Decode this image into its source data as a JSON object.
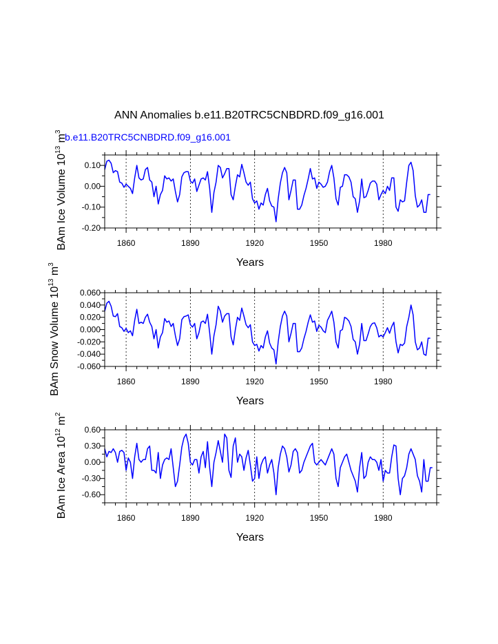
{
  "title": "ANN Anomalies b.e11.B20TRC5CNBDRD.f09_g16.001",
  "subtitle": "b.e11.B20TRC5CNBDRD.f09_g16.001",
  "colors": {
    "series": "#0000ff",
    "axis": "#000000"
  },
  "chart_data": [
    {
      "type": "line",
      "ylabel": {
        "main": "BAm Ice Volume 10",
        "exp": "13",
        "unit": " m",
        "unit_exp": "3"
      },
      "xlabel": "Years",
      "xlim": [
        1850,
        2005
      ],
      "ylim": [
        -0.2,
        0.15
      ],
      "yticks": [
        -0.2,
        -0.1,
        0.0,
        0.1
      ],
      "ytick_labels": [
        "-0.20",
        "-0.10",
        "0.00",
        "0.10"
      ],
      "xticks": [
        1860,
        1890,
        1920,
        1950,
        1980
      ],
      "xtick_labels": [
        "1860",
        "1890",
        "1920",
        "1950",
        "1980"
      ],
      "x_start": 1850,
      "values": [
        0.08,
        0.12,
        0.125,
        0.11,
        0.065,
        0.075,
        0.07,
        0.02,
        0.015,
        -0.005,
        0.01,
        0.0,
        -0.01,
        -0.035,
        0.04,
        0.1,
        0.04,
        0.03,
        0.035,
        0.08,
        0.09,
        0.03,
        0.02,
        -0.05,
        0.0,
        -0.085,
        -0.04,
        -0.02,
        0.05,
        0.035,
        0.04,
        0.025,
        0.035,
        -0.025,
        -0.075,
        -0.04,
        0.045,
        0.065,
        0.07,
        0.07,
        0.025,
        0.015,
        0.035,
        -0.025,
        0.005,
        0.035,
        0.04,
        0.03,
        0.07,
        -0.01,
        -0.125,
        -0.03,
        0.02,
        0.1,
        0.09,
        0.04,
        0.06,
        0.085,
        0.085,
        -0.04,
        -0.065,
        0.0,
        0.055,
        0.045,
        0.105,
        0.065,
        0.02,
        0.005,
        0.02,
        -0.06,
        -0.08,
        -0.07,
        -0.11,
        -0.08,
        -0.09,
        -0.04,
        -0.01,
        -0.07,
        -0.095,
        -0.1,
        -0.17,
        -0.06,
        0.015,
        0.065,
        0.09,
        0.065,
        -0.065,
        -0.02,
        0.03,
        0.03,
        -0.11,
        -0.11,
        -0.09,
        -0.045,
        -0.01,
        0.035,
        0.085,
        0.035,
        0.04,
        -0.01,
        0.02,
        0.01,
        -0.005,
        0.0,
        0.02,
        0.07,
        0.1,
        0.04,
        -0.06,
        -0.09,
        -0.005,
        0.0,
        0.055,
        0.055,
        0.045,
        0.02,
        -0.05,
        -0.06,
        -0.125,
        -0.07,
        0.035,
        -0.055,
        -0.05,
        -0.02,
        0.015,
        0.025,
        0.025,
        0.01,
        -0.065,
        -0.04,
        -0.02,
        -0.035,
        0.0,
        -0.02,
        0.04,
        0.04,
        -0.1,
        -0.12,
        -0.065,
        -0.075,
        -0.07,
        0.02,
        0.1,
        0.115,
        0.075,
        -0.045,
        -0.1,
        -0.09,
        -0.065,
        -0.125,
        -0.125,
        -0.04,
        -0.04
      ]
    },
    {
      "type": "line",
      "ylabel": {
        "main": "BAm Snow Volume 10",
        "exp": "13",
        "unit": " m",
        "unit_exp": "3"
      },
      "xlabel": "Years",
      "xlim": [
        1850,
        2005
      ],
      "ylim": [
        -0.06,
        0.06
      ],
      "yticks": [
        -0.06,
        -0.04,
        -0.02,
        0.0,
        0.02,
        0.04,
        0.06
      ],
      "ytick_labels": [
        "-0.060",
        "-0.040",
        "-0.020",
        "0.000",
        "0.020",
        "0.040",
        "0.060"
      ],
      "xticks": [
        1860,
        1890,
        1920,
        1950,
        1980
      ],
      "xtick_labels": [
        "1860",
        "1890",
        "1920",
        "1950",
        "1980"
      ],
      "x_start": 1850,
      "values": [
        0.03,
        0.043,
        0.046,
        0.038,
        0.022,
        0.021,
        0.026,
        0.005,
        0.003,
        -0.003,
        0.002,
        -0.005,
        -0.002,
        -0.01,
        0.015,
        0.033,
        0.01,
        0.012,
        0.01,
        0.02,
        0.025,
        0.012,
        0.005,
        -0.015,
        0.0,
        -0.03,
        -0.012,
        -0.005,
        0.018,
        0.012,
        0.014,
        0.005,
        0.01,
        -0.01,
        -0.026,
        -0.015,
        0.016,
        0.021,
        0.022,
        0.024,
        0.008,
        0.004,
        0.01,
        -0.015,
        -0.005,
        0.012,
        0.014,
        0.01,
        0.025,
        -0.005,
        -0.04,
        -0.01,
        0.008,
        0.038,
        0.03,
        0.012,
        0.022,
        0.026,
        0.026,
        -0.012,
        -0.025,
        0.0,
        0.02,
        0.015,
        0.035,
        0.022,
        0.008,
        0.003,
        0.008,
        -0.02,
        -0.026,
        -0.024,
        -0.035,
        -0.026,
        -0.03,
        -0.012,
        -0.002,
        -0.022,
        -0.03,
        -0.033,
        -0.056,
        -0.02,
        0.005,
        0.022,
        0.03,
        0.022,
        -0.02,
        -0.006,
        0.01,
        0.01,
        -0.036,
        -0.036,
        -0.03,
        -0.015,
        -0.003,
        0.012,
        0.024,
        0.012,
        0.014,
        -0.003,
        0.007,
        0.004,
        -0.002,
        -0.005,
        0.015,
        0.022,
        0.03,
        0.012,
        -0.02,
        -0.03,
        -0.002,
        0.0,
        0.02,
        0.018,
        0.014,
        0.005,
        -0.016,
        -0.02,
        -0.04,
        -0.024,
        0.01,
        -0.018,
        -0.018,
        -0.007,
        0.005,
        0.01,
        0.011,
        0.003,
        -0.012,
        -0.009,
        -0.012,
        -0.005,
        0.003,
        -0.006,
        0.005,
        0.012,
        -0.02,
        -0.038,
        -0.024,
        -0.026,
        -0.022,
        0.005,
        0.02,
        0.04,
        0.024,
        -0.02,
        -0.033,
        -0.03,
        -0.02,
        -0.04,
        -0.042,
        -0.014,
        -0.014
      ]
    },
    {
      "type": "line",
      "ylabel": {
        "main": "BAm Ice Area 10",
        "exp": "12",
        "unit": " m",
        "unit_exp": "2"
      },
      "xlabel": "Years",
      "xlim": [
        1850,
        2005
      ],
      "ylim": [
        -0.75,
        0.6
      ],
      "yticks": [
        -0.6,
        -0.3,
        0.0,
        0.3,
        0.6
      ],
      "ytick_labels": [
        "-0.60",
        "-0.30",
        "0.00",
        "0.30",
        "0.60"
      ],
      "xticks": [
        1860,
        1890,
        1920,
        1950,
        1980
      ],
      "xtick_labels": [
        "1860",
        "1890",
        "1920",
        "1950",
        "1980"
      ],
      "x_start": 1850,
      "values": [
        0.25,
        0.1,
        0.2,
        0.18,
        0.25,
        0.18,
        0.0,
        0.2,
        0.22,
        0.18,
        -0.15,
        0.08,
        0.0,
        -0.3,
        0.1,
        0.35,
        0.05,
        0.0,
        0.05,
        0.05,
        0.25,
        0.3,
        -0.15,
        -0.15,
        -0.2,
        0.18,
        -0.3,
        -0.05,
        0.05,
        0.08,
        0.05,
        0.25,
        -0.1,
        -0.45,
        -0.35,
        -0.05,
        0.28,
        0.45,
        0.52,
        0.35,
        0.0,
        -0.05,
        0.05,
        0.05,
        -0.2,
        0.1,
        0.2,
        -0.1,
        0.38,
        -0.1,
        -0.45,
        0.0,
        0.18,
        0.4,
        0.2,
        0.0,
        0.52,
        0.45,
        -0.15,
        -0.28,
        0.3,
        0.45,
        0.0,
        0.15,
        0.1,
        -0.15,
        0.08,
        0.22,
        -0.05,
        -0.35,
        -0.3,
        0.1,
        -0.3,
        -0.05,
        0.05,
        0.1,
        -0.2,
        -0.05,
        0.05,
        -0.2,
        -0.6,
        -0.1,
        0.15,
        0.3,
        0.25,
        0.1,
        -0.18,
        -0.05,
        0.2,
        0.25,
        0.18,
        -0.2,
        -0.15,
        0.0,
        0.1,
        0.2,
        0.3,
        0.35,
        0.0,
        -0.05,
        0.0,
        0.05,
        0.0,
        -0.05,
        0.05,
        0.15,
        0.25,
        0.15,
        -0.3,
        -0.45,
        -0.1,
        0.0,
        0.1,
        0.15,
        0.0,
        -0.15,
        -0.25,
        -0.35,
        -0.55,
        -0.1,
        0.18,
        -0.3,
        -0.25,
        0.0,
        0.1,
        0.05,
        0.05,
        0.0,
        -0.15,
        0.05,
        -0.35,
        -0.15,
        -0.2,
        -0.2,
        0.1,
        0.32,
        0.3,
        -0.3,
        -0.6,
        -0.3,
        -0.25,
        -0.1,
        0.15,
        0.25,
        0.15,
        0.05,
        -0.25,
        -0.35,
        -0.55,
        0.05,
        -0.35,
        -0.35,
        -0.1,
        -0.1
      ]
    }
  ]
}
